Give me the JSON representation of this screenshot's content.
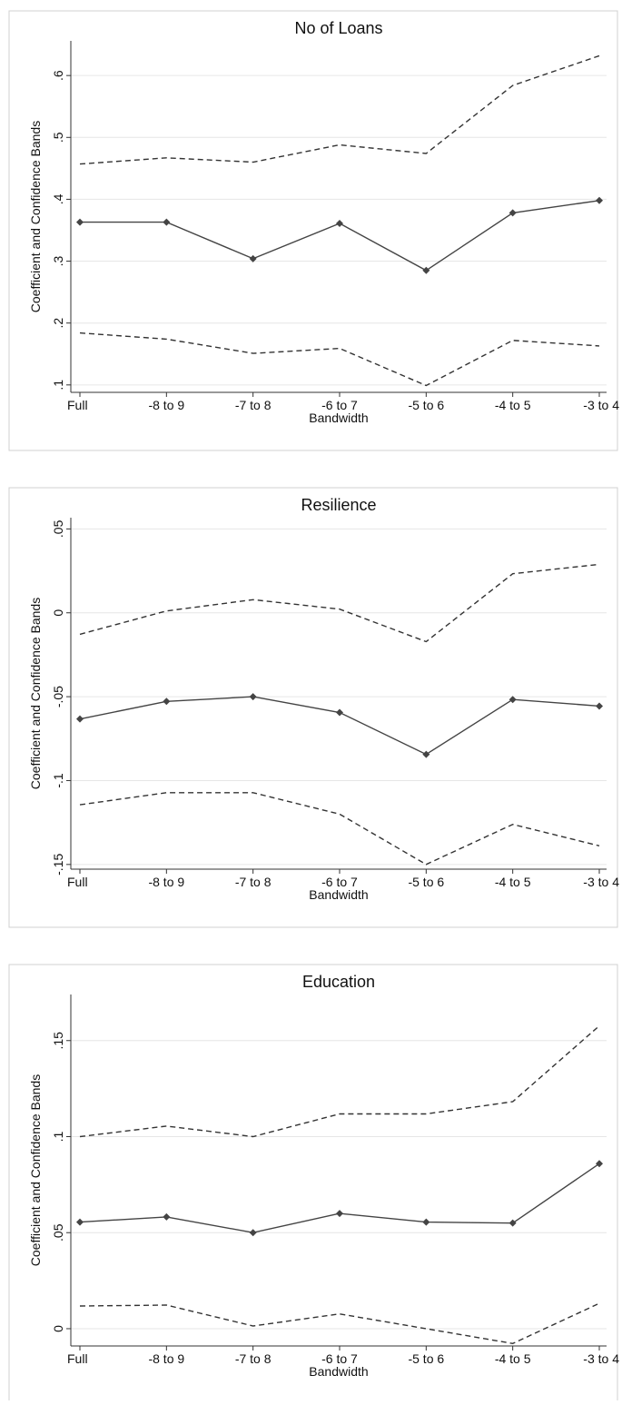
{
  "chart_data": [
    {
      "type": "line",
      "title": "No of Loans",
      "xlabel": "Bandwidth",
      "ylabel": "Coefficient and Confidence Bands",
      "categories": [
        "Full",
        "-8 to 9",
        "-7 to 8",
        "-6 to 7",
        "-5 to 6",
        "-4 to 5",
        "-3 to 4"
      ],
      "series": [
        {
          "color": "#444444",
          "dash": false,
          "marker": "diamond",
          "values": [
            0.363,
            0.363,
            0.304,
            0.361,
            0.285,
            0.378,
            0.398
          ]
        },
        {
          "color": "#333333",
          "dash": true,
          "values": [
            0.457,
            0.467,
            0.46,
            0.488,
            0.474,
            0.584,
            0.632
          ]
        },
        {
          "color": "#333333",
          "dash": true,
          "values": [
            0.184,
            0.174,
            0.151,
            0.159,
            0.099,
            0.172,
            0.163
          ]
        }
      ],
      "ylim": [
        0.088,
        0.656
      ],
      "yticks": [
        {
          "value": 0.1,
          "label": ".1"
        },
        {
          "value": 0.2,
          "label": ".2"
        },
        {
          "value": 0.3,
          "label": ".3"
        },
        {
          "value": 0.4,
          "label": ".4"
        },
        {
          "value": 0.5,
          "label": ".5"
        },
        {
          "value": 0.6,
          "label": ".6"
        }
      ],
      "grid": true
    },
    {
      "type": "line",
      "title": "Resilience",
      "xlabel": "Bandwidth",
      "ylabel": "Coefficient and Confidence Bands",
      "categories": [
        "Full",
        "-8 to 9",
        "-7 to 8",
        "-6 to 7",
        "-5 to 6",
        "-4 to 5",
        "-3 to 4"
      ],
      "series": [
        {
          "color": "#444444",
          "dash": false,
          "marker": "diamond",
          "values": [
            -0.0633,
            -0.0528,
            -0.05,
            -0.0594,
            -0.0844,
            -0.0517,
            -0.0556
          ]
        },
        {
          "color": "#333333",
          "dash": true,
          "values": [
            -0.0128,
            0.0011,
            0.0078,
            0.0022,
            -0.0172,
            0.0233,
            0.0289
          ]
        },
        {
          "color": "#333333",
          "dash": true,
          "values": [
            -0.1144,
            -0.1072,
            -0.1072,
            -0.12,
            -0.15,
            -0.1261,
            -0.1389
          ]
        }
      ],
      "ylim": [
        -0.1528,
        0.0567
      ],
      "yticks": [
        {
          "value": -0.15,
          "label": "-.15"
        },
        {
          "value": -0.1,
          "label": "-.1"
        },
        {
          "value": -0.05,
          "label": "-.05"
        },
        0,
        {
          "value": 0.05,
          "label": ".05"
        }
      ],
      "grid": true
    },
    {
      "type": "line",
      "title": "Education",
      "xlabel": "Bandwidth",
      "ylabel": "Coefficient and Confidence Bands",
      "categories": [
        "Full",
        "-8 to 9",
        "-7 to 8",
        "-6 to 7",
        "-5 to 6",
        "-4 to 5",
        "-3 to 4"
      ],
      "series": [
        {
          "color": "#444444",
          "dash": false,
          "marker": "diamond",
          "values": [
            0.0555,
            0.0582,
            0.05,
            0.06,
            0.0555,
            0.055,
            0.0859
          ]
        },
        {
          "color": "#333333",
          "dash": true,
          "values": [
            0.1,
            0.1055,
            0.1,
            0.1118,
            0.1118,
            0.1182,
            0.1577
          ]
        },
        {
          "color": "#333333",
          "dash": true,
          "values": [
            0.0118,
            0.0123,
            0.0014,
            0.0077,
            0,
            -0.0077,
            0.0132
          ]
        }
      ],
      "ylim": [
        -0.009,
        0.174
      ],
      "yticks": [
        0,
        {
          "value": 0.05,
          "label": ".05"
        },
        {
          "value": 0.1,
          "label": ".1"
        },
        {
          "value": 0.15,
          "label": ".15"
        }
      ],
      "grid": true
    }
  ]
}
